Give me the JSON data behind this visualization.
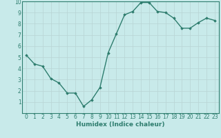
{
  "x": [
    0,
    1,
    2,
    3,
    4,
    5,
    6,
    7,
    8,
    9,
    10,
    11,
    12,
    13,
    14,
    15,
    16,
    17,
    18,
    19,
    20,
    21,
    22,
    23
  ],
  "y": [
    5.2,
    4.4,
    4.2,
    3.1,
    2.7,
    1.8,
    1.8,
    0.6,
    1.2,
    2.3,
    5.4,
    7.1,
    8.8,
    9.1,
    9.9,
    9.9,
    9.1,
    9.0,
    8.5,
    7.6,
    7.6,
    8.1,
    8.5,
    8.3
  ],
  "line_color": "#2e7d6e",
  "marker": "D",
  "marker_size": 1.8,
  "bg_color": "#c8eaea",
  "grid_color": "#b8d4d4",
  "xlabel": "Humidex (Indice chaleur)",
  "xlim": [
    -0.5,
    23.5
  ],
  "ylim": [
    0,
    10
  ],
  "yticks": [
    1,
    2,
    3,
    4,
    5,
    6,
    7,
    8,
    9,
    10
  ],
  "xticks": [
    0,
    1,
    2,
    3,
    4,
    5,
    6,
    7,
    8,
    9,
    10,
    11,
    12,
    13,
    14,
    15,
    16,
    17,
    18,
    19,
    20,
    21,
    22,
    23
  ],
  "xlabel_fontsize": 6.5,
  "tick_fontsize": 5.5,
  "line_width": 1.0
}
